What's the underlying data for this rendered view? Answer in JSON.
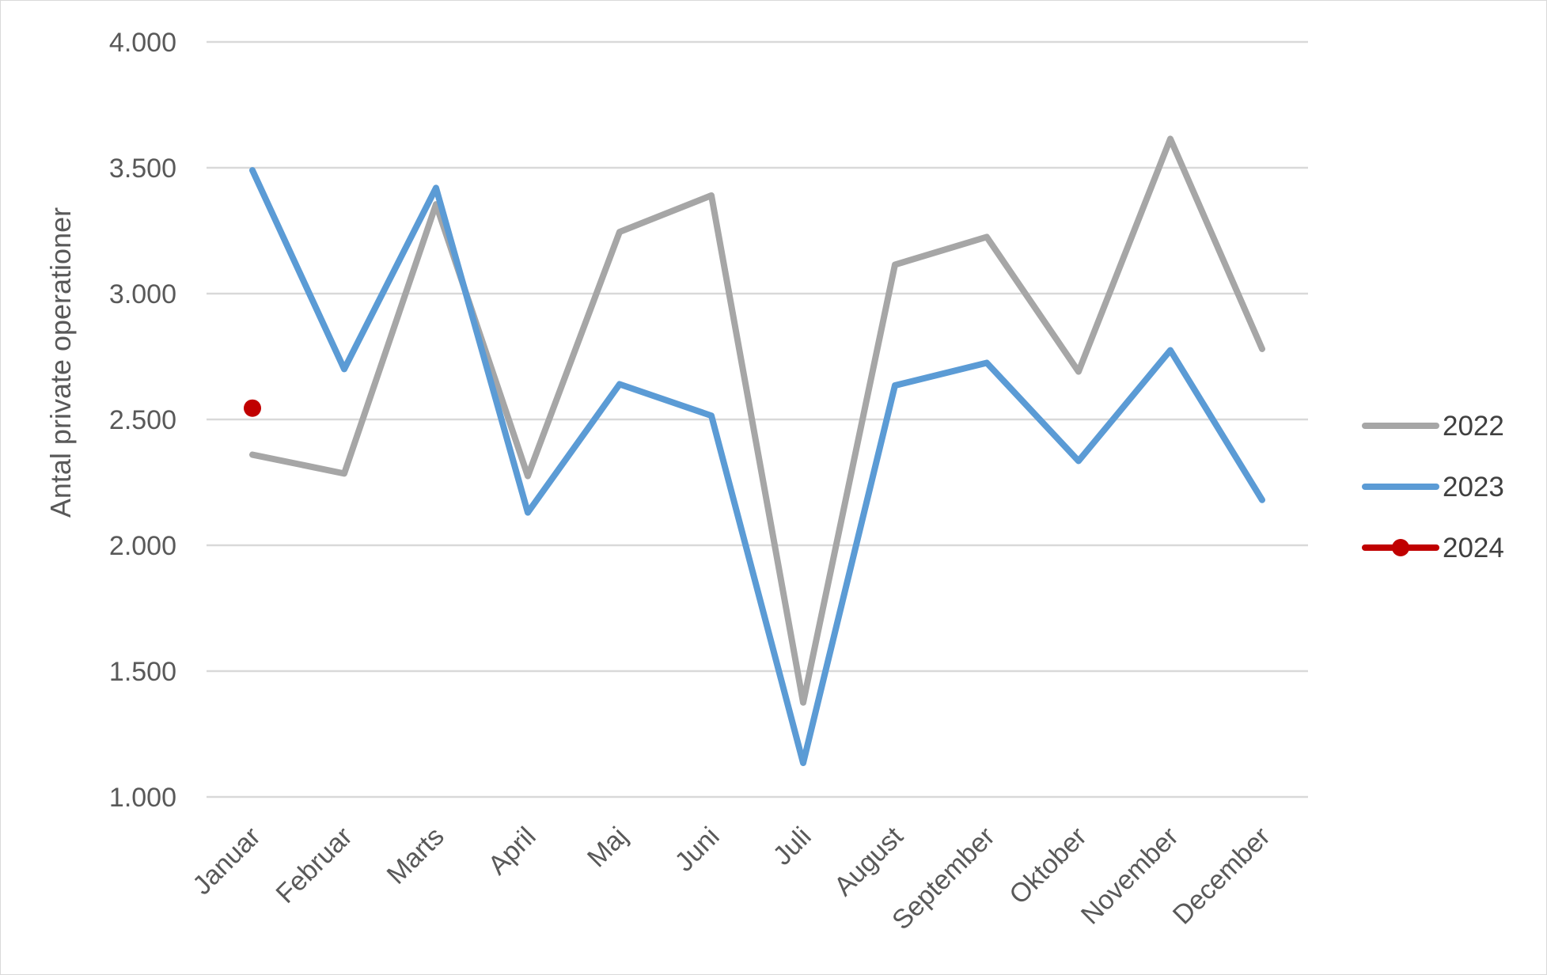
{
  "chart_data": {
    "type": "line",
    "title": "",
    "xlabel": "",
    "ylabel": "Antal private operationer",
    "ylim": [
      1000,
      4000
    ],
    "yticks": [
      1000,
      1500,
      2000,
      2500,
      3000,
      3500,
      4000
    ],
    "ytick_labels": [
      "1.000",
      "1.500",
      "2.000",
      "2.500",
      "3.000",
      "3.500",
      "4.000"
    ],
    "grid": true,
    "legend_position": "right",
    "categories": [
      "Januar",
      "Februar",
      "Marts",
      "April",
      "Maj",
      "Juni",
      "Juli",
      "August",
      "September",
      "Oktober",
      "November",
      "December"
    ],
    "series": [
      {
        "name": "2022",
        "color": "#a6a6a6",
        "marker": false,
        "values": [
          2360,
          2285,
          3355,
          2275,
          3245,
          3390,
          1375,
          3115,
          3225,
          2690,
          3615,
          2780
        ]
      },
      {
        "name": "2023",
        "color": "#5b9bd5",
        "marker": false,
        "values": [
          3490,
          2700,
          3420,
          2130,
          2640,
          2515,
          1135,
          2635,
          2725,
          2335,
          2775,
          2180
        ]
      },
      {
        "name": "2024",
        "color": "#c00000",
        "marker": true,
        "values": [
          2545,
          null,
          null,
          null,
          null,
          null,
          null,
          null,
          null,
          null,
          null,
          null
        ]
      }
    ]
  }
}
